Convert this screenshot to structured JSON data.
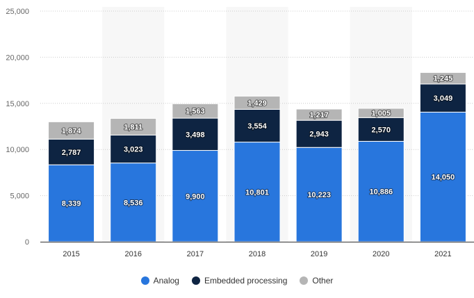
{
  "chart_data": {
    "type": "bar",
    "stacked": true,
    "categories": [
      "2015",
      "2016",
      "2017",
      "2018",
      "2019",
      "2020",
      "2021"
    ],
    "series": [
      {
        "name": "Analog",
        "color": "#2876dd",
        "values": [
          8339,
          8536,
          9900,
          10801,
          10223,
          10886,
          14050
        ],
        "labels": [
          "8,339",
          "8,536",
          "9,900",
          "10,801",
          "10,223",
          "10,886",
          "14,050"
        ]
      },
      {
        "name": "Embedded processing",
        "color": "#0e2442",
        "values": [
          2787,
          3023,
          3498,
          3554,
          2943,
          2570,
          3049
        ],
        "labels": [
          "2,787",
          "3,023",
          "3,498",
          "3,554",
          "2,943",
          "2,570",
          "3,049"
        ]
      },
      {
        "name": "Other",
        "color": "#b5b5b5",
        "values": [
          1874,
          1811,
          1563,
          1429,
          1217,
          1005,
          1245
        ],
        "labels": [
          "1,874",
          "1,811",
          "1,563",
          "1,429",
          "1,217",
          "1,005",
          "1,245"
        ]
      }
    ],
    "ylim": [
      0,
      25000
    ],
    "yticks": [
      0,
      5000,
      10000,
      15000,
      20000,
      25000
    ],
    "ytick_labels": [
      "0",
      "5,000",
      "10,000",
      "15,000",
      "20,000",
      "25,000"
    ],
    "grid": true,
    "title": "",
    "xlabel": "",
    "ylabel": "",
    "legend_position": "bottom-center"
  }
}
